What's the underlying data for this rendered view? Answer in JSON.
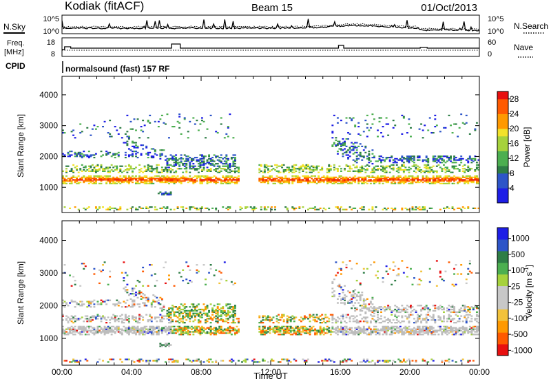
{
  "header": {
    "station": "Kodiak (fitACF)",
    "beam": "Beam 15",
    "date": "01/Oct/2013"
  },
  "strip_noise": {
    "left_label": "N.Sky",
    "right_label": "N.Search",
    "ticks_left": [
      "10^5",
      "10^0"
    ],
    "ticks_right": [
      "10^5",
      "10^0"
    ]
  },
  "strip_freq": {
    "left_label_1": "Freq.",
    "left_label_2": "[MHz]",
    "right_label": "Nave",
    "ticks_left": [
      "18",
      "8"
    ],
    "ticks_right": [
      "60",
      "0"
    ]
  },
  "cpid": {
    "label": "CPID",
    "text": "normalsound (fast) 157 RF"
  },
  "colors": {
    "power": [
      "#1e1ee6",
      "#2d55c8",
      "#2e7d46",
      "#4caf50",
      "#a6d23c",
      "#f2e22a",
      "#ff9900",
      "#ff5a00",
      "#e81010"
    ],
    "velocity": [
      "#e81010",
      "#ff5a00",
      "#ff9900",
      "#f2c23a",
      "#c8c8c8",
      "#c8c8c8",
      "#a6d23c",
      "#4caf50",
      "#2e7d46",
      "#2d55c8",
      "#1e1ee6"
    ],
    "ground_scatter": "#bdbdbd"
  },
  "chart_data": [
    {
      "type": "heatmap",
      "panel": "power",
      "title": "",
      "xlabel": "",
      "ylabel": "Slant Range [km]",
      "xlim": [
        "00:00",
        "00:00"
      ],
      "ylim": [
        180,
        4600
      ],
      "yticks": [
        "1000",
        "2000",
        "3000",
        "4000"
      ],
      "colorbar": {
        "label": "Power [dB]",
        "ticks": [
          "4",
          "8",
          "12",
          "16",
          "20",
          "24",
          "28"
        ],
        "range": [
          0,
          30
        ]
      }
    },
    {
      "type": "heatmap",
      "panel": "velocity",
      "title": "",
      "xlabel": "Time UT",
      "ylabel": "Slant Range [km]",
      "xlim": [
        "00:00",
        "00:00"
      ],
      "ylim": [
        180,
        4600
      ],
      "xticks": [
        "00:00",
        "04:00",
        "08:00",
        "12:00",
        "16:00",
        "20:00",
        "00:00"
      ],
      "yticks": [
        "1000",
        "2000",
        "3000",
        "4000"
      ],
      "colorbar": {
        "label": "Velocity [m s",
        "label_sup": "-1",
        "label_end": "]",
        "ticks": [
          "1000",
          "500",
          "100",
          "25",
          "-25",
          "-100",
          "-500",
          "-1000"
        ]
      }
    }
  ]
}
